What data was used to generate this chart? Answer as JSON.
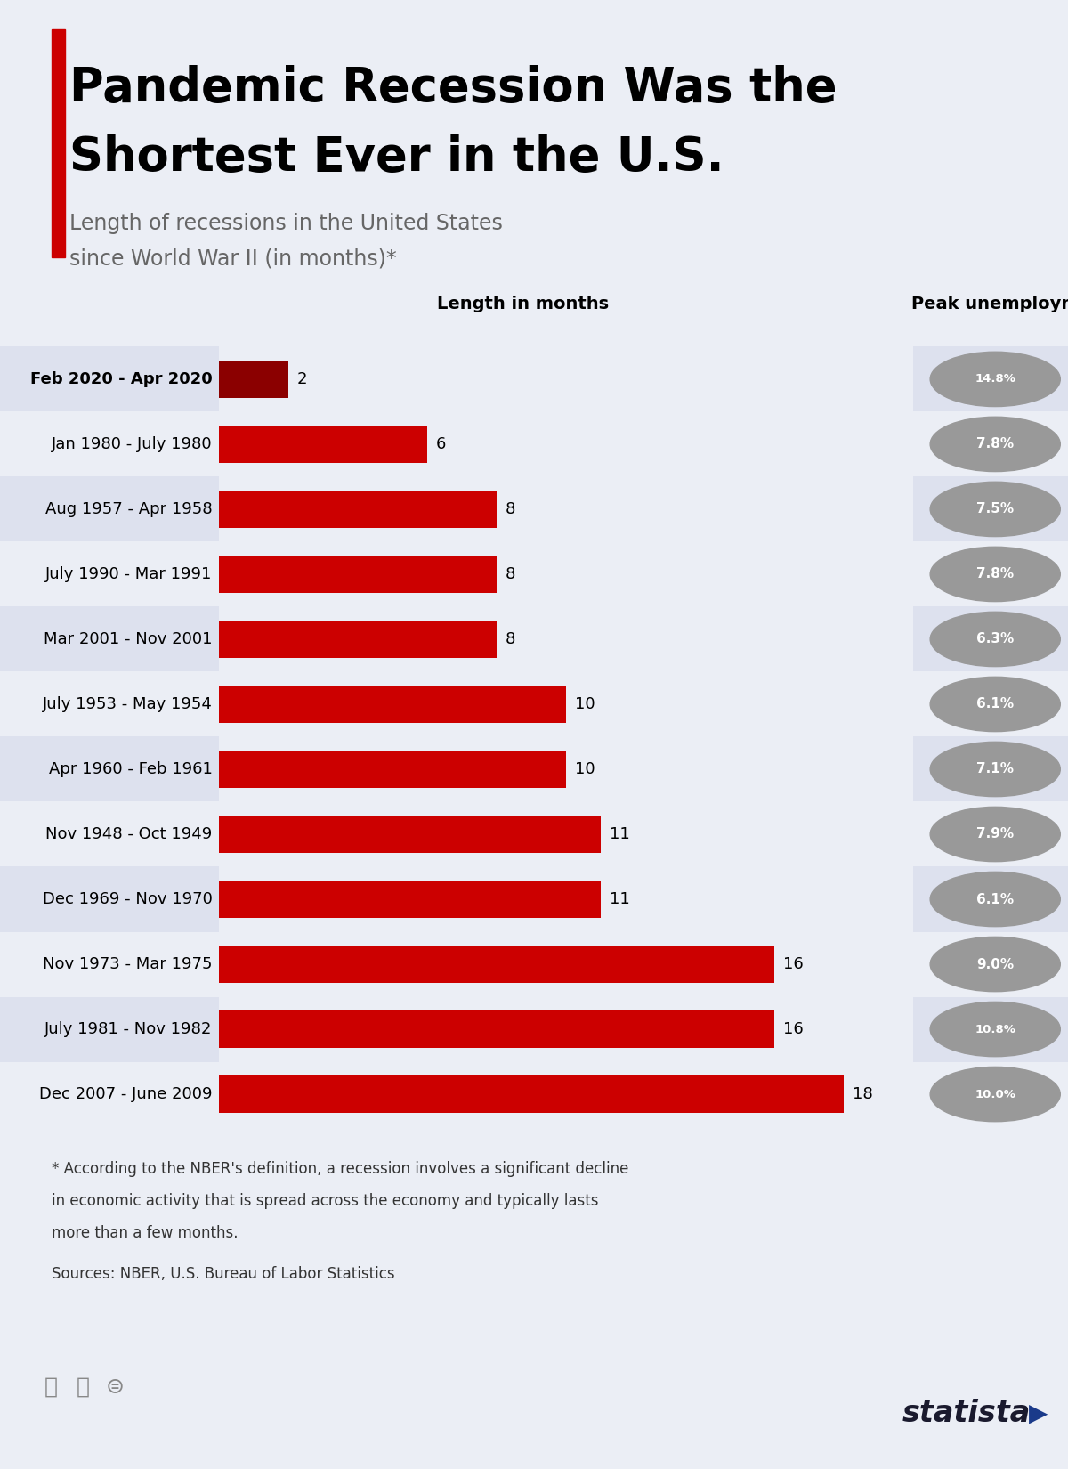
{
  "title_line1": "Pandemic Recession Was the",
  "title_line2": "Shortest Ever in the U.S.",
  "subtitle_line1": "Length of recessions in the United States",
  "subtitle_line2": "since World War II (in months)*",
  "col_header_left": "Length in months",
  "col_header_right": "Peak unemployment",
  "categories": [
    "Feb 2020 - Apr 2020",
    "Jan 1980 - July 1980",
    "Aug 1957 - Apr 1958",
    "July 1990 - Mar 1991",
    "Mar 2001 - Nov 2001",
    "July 1953 - May 1954",
    "Apr 1960 - Feb 1961",
    "Nov 1948 - Oct 1949",
    "Dec 1969 - Nov 1970",
    "Nov 1973 - Mar 1975",
    "July 1981 - Nov 1982",
    "Dec 2007 - June 2009"
  ],
  "values": [
    2,
    6,
    8,
    8,
    8,
    10,
    10,
    11,
    11,
    16,
    16,
    18
  ],
  "peak_unemployment": [
    "14.8%",
    "7.8%",
    "7.5%",
    "7.8%",
    "6.3%",
    "6.1%",
    "7.1%",
    "7.9%",
    "6.1%",
    "9.0%",
    "10.8%",
    "10.0%"
  ],
  "bar_colors": [
    "#8B0000",
    "#CC0000",
    "#CC0000",
    "#CC0000",
    "#CC0000",
    "#CC0000",
    "#CC0000",
    "#CC0000",
    "#CC0000",
    "#CC0000",
    "#CC0000",
    "#CC0000"
  ],
  "bg_color": "#EBEef5",
  "row_alt_color": "#DDE1EE",
  "row_bg_color": "#EBEef5",
  "title_color": "#000000",
  "subtitle_color": "#666666",
  "unemployment_bg": "#999999",
  "footnote_line1": "* According to the NBER's definition, a recession involves a significant decline",
  "footnote_line2": "in economic activity that is spread across the economy and typically lasts",
  "footnote_line3": "more than a few months.",
  "sources_line": "Sources: NBER, U.S. Bureau of Labor Statistics",
  "red_accent_color": "#CC0000",
  "max_bar_value": 20
}
